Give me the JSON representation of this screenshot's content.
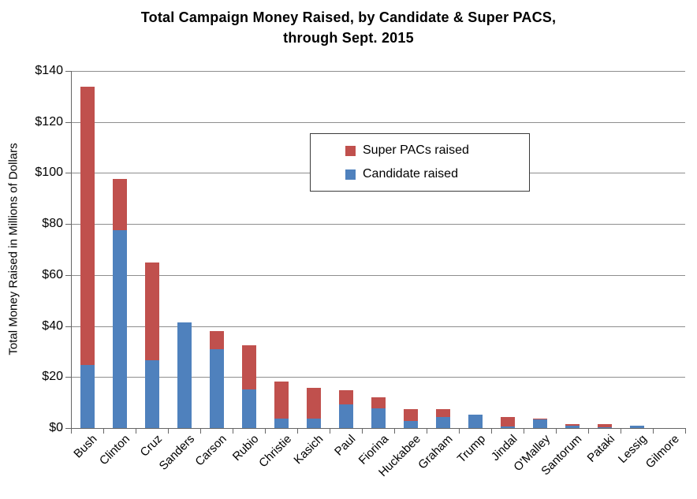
{
  "title": {
    "line1": "Total Campaign Money Raised, by Candidate & Super PACS,",
    "line2": "through Sept. 2015"
  },
  "y_axis": {
    "title": "Total Money Raised in Millions of Dollars",
    "tick_labels": [
      "$0",
      "$20",
      "$40",
      "$60",
      "$80",
      "$100",
      "$120",
      "$140"
    ]
  },
  "legend": [
    {
      "label": "Super PACs raised",
      "color": "#C0504D"
    },
    {
      "label": "Candidate raised",
      "color": "#4F81BD"
    }
  ],
  "chart_data": {
    "type": "bar",
    "stacked": true,
    "title": "Total Campaign Money Raised, by Candidate & Super PACS, through Sept. 2015",
    "xlabel": "",
    "ylabel": "Total Money Raised in Millions of Dollars",
    "ylim": [
      0,
      140
    ],
    "y_tick_step": 20,
    "y_tick_format": "$",
    "grid": true,
    "legend_position": "upper-center-inside",
    "x_label_rotation": 45,
    "categories": [
      "Bush",
      "Clinton",
      "Cruz",
      "Sanders",
      "Carson",
      "Rubio",
      "Christie",
      "Kasich",
      "Paul",
      "Fiorina",
      "Huckabee",
      "Graham",
      "Trump",
      "Jindal",
      "O'Malley",
      "Santorum",
      "Pataki",
      "Lessig",
      "Gilmore"
    ],
    "series": [
      {
        "name": "Candidate raised",
        "color": "#4F81BD",
        "values": [
          24.8,
          77.5,
          26.5,
          41.5,
          31.0,
          15.0,
          3.7,
          3.6,
          9.4,
          7.8,
          2.7,
          4.2,
          5.3,
          0.7,
          3.3,
          0.8,
          0.2,
          1.0,
          0
        ]
      },
      {
        "name": "Super PACs raised",
        "color": "#C0504D",
        "values": [
          108.9,
          20.3,
          38.4,
          0,
          7.0,
          17.5,
          14.4,
          12.3,
          5.4,
          4.2,
          4.6,
          3.1,
          0,
          3.7,
          0.5,
          0.6,
          1.2,
          0,
          0
        ]
      }
    ]
  },
  "colors": {
    "candidate_bar": "#4F81BD",
    "superpac_bar": "#C0504D",
    "gridline": "#8e8e8e",
    "axis": "#666666",
    "background": "#ffffff",
    "text": "#000000"
  }
}
